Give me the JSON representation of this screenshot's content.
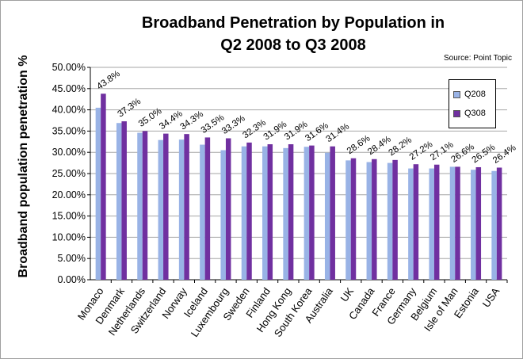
{
  "chart_data": {
    "type": "bar",
    "title": "Broadband Penetration by Population in Q2 2008 to Q3 2008",
    "title_lines": [
      "Broadband Penetration by Population in",
      "Q2 2008 to Q3 2008"
    ],
    "source": "Source: Point Topic",
    "xlabel": "",
    "ylabel": "Broadband population  penetration %",
    "ylim": [
      0,
      50
    ],
    "yticks": [
      "0.00%",
      "5.00%",
      "10.00%",
      "15.00%",
      "20.00%",
      "25.00%",
      "30.00%",
      "35.00%",
      "40.00%",
      "45.00%",
      "50.00%"
    ],
    "grid": true,
    "legend_position": "top-right",
    "categories": [
      "Monaco",
      "Denmark",
      "Netherlands",
      "Switzerland",
      "Norway",
      "Iceland",
      "Luxembourg",
      "Sweden",
      "Finland",
      "Hong Kong",
      "South Korea",
      "Australia",
      "UK",
      "Canada",
      "France",
      "Germany",
      "Belgium",
      "Isle of Man",
      "Estonia",
      "USA"
    ],
    "series": [
      {
        "name": "Q208",
        "color": "#99b3e6",
        "values": [
          40.5,
          36.9,
          34.6,
          32.9,
          33.0,
          31.8,
          30.5,
          31.4,
          31.4,
          31.0,
          31.3,
          29.9,
          28.1,
          27.7,
          27.5,
          26.2,
          26.2,
          26.6,
          25.9,
          25.6
        ]
      },
      {
        "name": "Q308",
        "color": "#7030a0",
        "values": [
          43.8,
          37.3,
          35.0,
          34.4,
          34.3,
          33.5,
          33.3,
          32.3,
          31.9,
          31.9,
          31.6,
          31.4,
          28.6,
          28.4,
          28.2,
          27.2,
          27.1,
          26.6,
          26.5,
          26.4
        ]
      }
    ],
    "data_labels": [
      "43.8%",
      "37.3%",
      "35.0%",
      "34.4%",
      "34.3%",
      "33.5%",
      "33.3%",
      "32.3%",
      "31.9%",
      "31.9%",
      "31.6%",
      "31.4%",
      "28.6%",
      "28.4%",
      "28.2%",
      "27.2%",
      "27.1%",
      "26.6%",
      "26.5%",
      "26.4%"
    ]
  }
}
